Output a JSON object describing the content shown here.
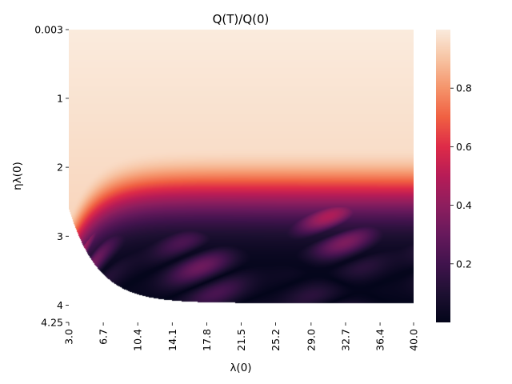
{
  "chart_data": {
    "type": "heatmap",
    "title": "Q(T)/Q(0)",
    "xlabel": "λ(0)",
    "ylabel": "ηλ(0)",
    "x_ticks": [
      "3.0",
      "6.7",
      "10.4",
      "14.1",
      "17.8",
      "21.5",
      "25.2",
      "29.0",
      "32.7",
      "36.4",
      "40.0"
    ],
    "y_ticks": [
      "0.003",
      "1",
      "2",
      "3",
      "4",
      "4.25"
    ],
    "xlim": [
      3.0,
      40.0
    ],
    "ylim": [
      0.003,
      4.25
    ],
    "y_inverted": true,
    "colorbar": {
      "colormap": "rocket",
      "range": [
        0.0,
        1.0
      ],
      "ticks": [
        "0.2",
        "0.4",
        "0.6",
        "0.8"
      ]
    },
    "regions": [
      {
        "description_value": 1.0,
        "eta_max_at_lambda40": 1.7
      },
      {
        "description_value": 0.5,
        "eta_at_lambda40": 2.35
      },
      {
        "description_value": 0.0,
        "eta_at_lambda40": 3.1
      }
    ],
    "boundary": {
      "eta_max": 3.97,
      "eta_min_at_lambda3": 2.5
    }
  }
}
